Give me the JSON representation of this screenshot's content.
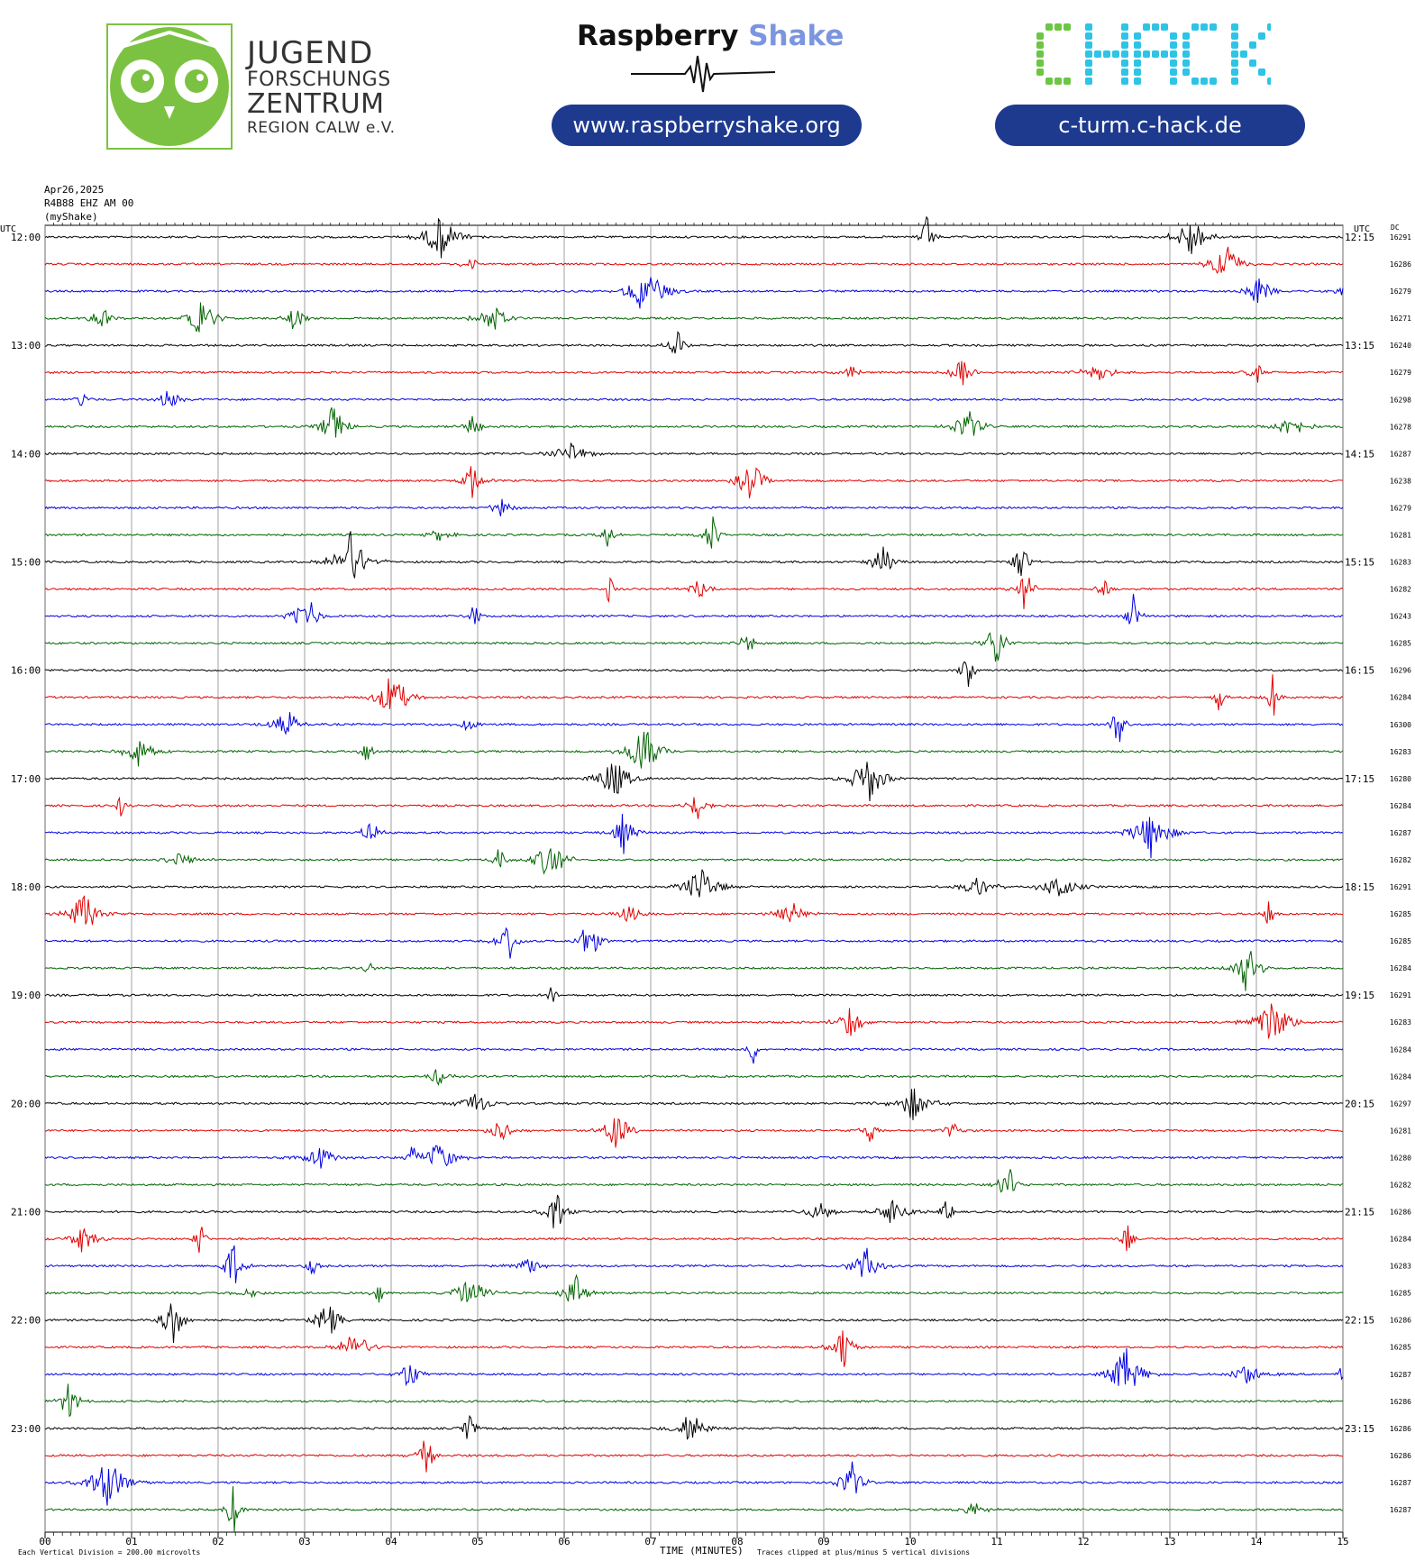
{
  "header": {
    "jfz": {
      "line1": "JUGEND",
      "line2": "FORSCHUNGS",
      "line3": "ZENTRUM",
      "line4": "REGION CALW e.V."
    },
    "rs_brand": {
      "part1": "Raspberry",
      "part2": "Shake"
    },
    "rs_url": "www.raspberryshake.org",
    "chack_url": "c-turm.c-hack.de",
    "chack_logo_text": "CHACK",
    "colors": {
      "jfz_green": "#7cc242",
      "brand_blue": "#1d3a8f",
      "shake_blue": "#7c95e0",
      "chack_green": "#6cc644",
      "chack_cyan": "#2ec4e6"
    }
  },
  "meta": {
    "date": "Apr26,2025",
    "channel": "R4B88 EHZ AM 00",
    "source": "(myShake)"
  },
  "chart_data": {
    "type": "line",
    "title": "",
    "xlabel": "TIME (MINUTES)",
    "ylabel": "",
    "left_axis_label": "UTC",
    "right_axis_label": "UTC",
    "dc_label": "DC",
    "x_ticks": [
      "00",
      "01",
      "02",
      "03",
      "04",
      "05",
      "06",
      "07",
      "08",
      "09",
      "10",
      "11",
      "12",
      "13",
      "14",
      "15"
    ],
    "xlim": [
      0,
      15
    ],
    "left_hour_labels": [
      "12:00",
      "13:00",
      "14:00",
      "15:00",
      "16:00",
      "17:00",
      "18:00",
      "19:00",
      "20:00",
      "21:00",
      "22:00",
      "23:00"
    ],
    "right_hour_labels": [
      "12:15",
      "13:15",
      "14:15",
      "15:15",
      "16:15",
      "17:15",
      "18:15",
      "19:15",
      "20:15",
      "21:15",
      "22:15",
      "23:15"
    ],
    "trace_colors": [
      "#000000",
      "#e00000",
      "#0000e0",
      "#006400"
    ],
    "dc_values": [
      "16291",
      "16286",
      "16279",
      "16271",
      "16240",
      "16279",
      "16298",
      "16278",
      "16287",
      "16238",
      "16279",
      "16281",
      "16283",
      "16282",
      "16243",
      "16285",
      "16296",
      "16284",
      "16300",
      "16283",
      "16280",
      "16284",
      "16287",
      "16282",
      "16291",
      "16285",
      "16285",
      "16284",
      "16291",
      "16283",
      "16284",
      "16284",
      "16297",
      "16281",
      "16280",
      "16282",
      "16286",
      "16284",
      "16283",
      "16285",
      "16286",
      "16285",
      "16287",
      "16286",
      "16286",
      "16286",
      "16287",
      "16287"
    ],
    "footnote_left": "Each Vertical Division =  200.00 microvolts",
    "footnote_right": "Traces clipped at plus/minus 5 vertical divisions",
    "grid": true
  }
}
